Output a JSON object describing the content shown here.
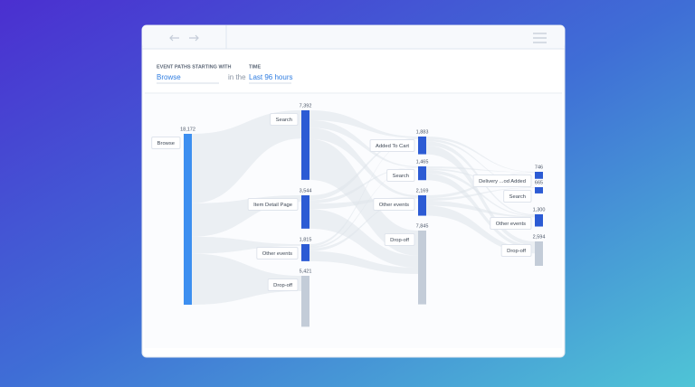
{
  "filters": {
    "start_label": "EVENT PATHS STARTING WITH",
    "start_value": "Browse",
    "connector": "in the",
    "time_label": "TIME",
    "time_value": "Last 96 hours"
  },
  "flow": {
    "columns": [
      {
        "nodes": [
          {
            "label": "Browse",
            "value": 18172,
            "value_label": "18,172"
          }
        ]
      },
      {
        "nodes": [
          {
            "label": "Search",
            "value": 7392,
            "value_label": "7,392"
          },
          {
            "label": "Item Detail Page",
            "value": 3544,
            "value_label": "3,544"
          },
          {
            "label": "Other events",
            "value": 1815,
            "value_label": "1,815"
          },
          {
            "label": "Drop-off",
            "value": 5421,
            "value_label": "5,421"
          }
        ]
      },
      {
        "nodes": [
          {
            "label": "Added To Cart",
            "value": 1883,
            "value_label": "1,883"
          },
          {
            "label": "Search",
            "value": 1465,
            "value_label": "1,465"
          },
          {
            "label": "Other events",
            "value": 2169,
            "value_label": "2,169"
          },
          {
            "label": "Drop-off",
            "value": 7845,
            "value_label": "7,845"
          }
        ]
      },
      {
        "nodes": [
          {
            "label": "Delivery ...od Added",
            "value": 746
          },
          {
            "label": "Search",
            "value": 665
          },
          {
            "label": "Other events",
            "value": 1300,
            "value_label": "1,300"
          },
          {
            "label": "Drop-off",
            "value": 2594,
            "value_label": "2,594"
          }
        ]
      }
    ]
  }
}
